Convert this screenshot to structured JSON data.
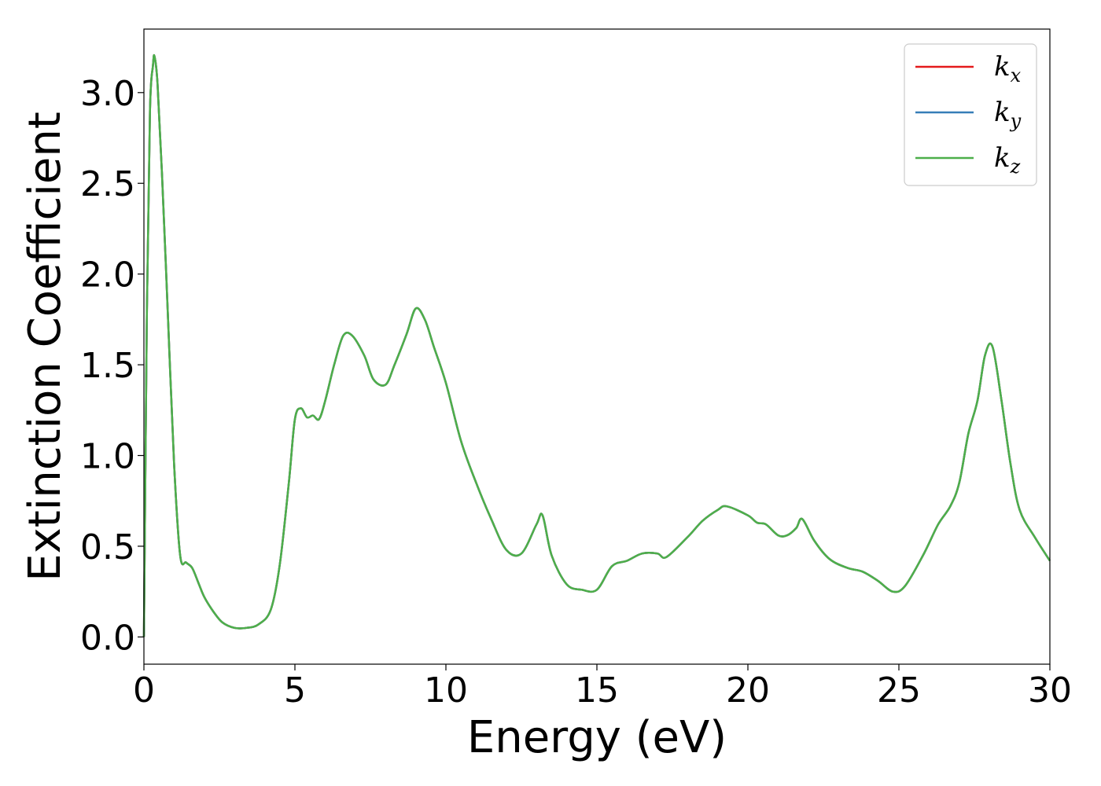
{
  "chart_data": {
    "type": "line",
    "title": "",
    "xlabel": "Energy (eV)",
    "ylabel": "Extinction Coefficient",
    "xlim": [
      0,
      30
    ],
    "ylim": [
      -0.15,
      3.35
    ],
    "xticks": [
      0,
      5,
      10,
      15,
      20,
      25,
      30
    ],
    "xtick_labels": [
      "0",
      "5",
      "10",
      "15",
      "20",
      "25",
      "30"
    ],
    "yticks": [
      0.0,
      0.5,
      1.0,
      1.5,
      2.0,
      2.5,
      3.0
    ],
    "ytick_labels": [
      "0.0",
      "0.5",
      "1.0",
      "1.5",
      "2.0",
      "2.5",
      "3.0"
    ],
    "grid": false,
    "legend_position": "top-right",
    "x": [
      0.0,
      0.1,
      0.2,
      0.3,
      0.35,
      0.45,
      0.6,
      0.8,
      1.0,
      1.2,
      1.4,
      1.6,
      1.8,
      2.0,
      2.3,
      2.6,
      3.0,
      3.4,
      3.8,
      4.2,
      4.5,
      4.8,
      5.0,
      5.2,
      5.4,
      5.6,
      5.8,
      6.0,
      6.3,
      6.6,
      6.9,
      7.3,
      7.6,
      8.0,
      8.3,
      8.7,
      9.0,
      9.3,
      9.6,
      10.0,
      10.5,
      11.0,
      11.5,
      12.0,
      12.5,
      13.0,
      13.2,
      13.5,
      14.0,
      14.5,
      15.0,
      15.5,
      16.0,
      16.5,
      17.0,
      17.3,
      18.0,
      18.5,
      19.0,
      19.3,
      20.0,
      20.3,
      20.6,
      21.0,
      21.3,
      21.6,
      21.8,
      22.2,
      22.7,
      23.3,
      23.8,
      24.3,
      24.8,
      25.2,
      25.8,
      26.3,
      26.7,
      27.0,
      27.3,
      27.6,
      27.85,
      28.1,
      28.4,
      28.7,
      29.0,
      29.5,
      30.0
    ],
    "series": [
      {
        "name": "kx",
        "color": "#e41a1c",
        "values": [
          0.0,
          1.8,
          2.9,
          3.15,
          3.2,
          3.05,
          2.55,
          1.75,
          0.95,
          0.45,
          0.41,
          0.38,
          0.3,
          0.22,
          0.14,
          0.08,
          0.05,
          0.05,
          0.07,
          0.15,
          0.4,
          0.85,
          1.2,
          1.26,
          1.21,
          1.22,
          1.2,
          1.3,
          1.5,
          1.66,
          1.66,
          1.55,
          1.42,
          1.39,
          1.5,
          1.67,
          1.81,
          1.75,
          1.6,
          1.4,
          1.08,
          0.85,
          0.65,
          0.48,
          0.46,
          0.62,
          0.67,
          0.45,
          0.29,
          0.26,
          0.26,
          0.39,
          0.42,
          0.46,
          0.46,
          0.44,
          0.55,
          0.64,
          0.7,
          0.72,
          0.67,
          0.63,
          0.62,
          0.56,
          0.56,
          0.6,
          0.65,
          0.53,
          0.43,
          0.38,
          0.36,
          0.31,
          0.25,
          0.28,
          0.45,
          0.62,
          0.72,
          0.85,
          1.12,
          1.3,
          1.55,
          1.6,
          1.3,
          0.95,
          0.7,
          0.55,
          0.42
        ]
      },
      {
        "name": "ky",
        "color": "#377eb8",
        "values": [
          0.0,
          1.8,
          2.9,
          3.15,
          3.2,
          3.05,
          2.55,
          1.75,
          0.95,
          0.45,
          0.41,
          0.38,
          0.3,
          0.22,
          0.14,
          0.08,
          0.05,
          0.05,
          0.07,
          0.15,
          0.4,
          0.85,
          1.2,
          1.26,
          1.21,
          1.22,
          1.2,
          1.3,
          1.5,
          1.66,
          1.66,
          1.55,
          1.42,
          1.39,
          1.5,
          1.67,
          1.81,
          1.75,
          1.6,
          1.4,
          1.08,
          0.85,
          0.65,
          0.48,
          0.46,
          0.62,
          0.67,
          0.45,
          0.29,
          0.26,
          0.26,
          0.39,
          0.42,
          0.46,
          0.46,
          0.44,
          0.55,
          0.64,
          0.7,
          0.72,
          0.67,
          0.63,
          0.62,
          0.56,
          0.56,
          0.6,
          0.65,
          0.53,
          0.43,
          0.38,
          0.36,
          0.31,
          0.25,
          0.28,
          0.45,
          0.62,
          0.72,
          0.85,
          1.12,
          1.3,
          1.55,
          1.6,
          1.3,
          0.95,
          0.7,
          0.55,
          0.42
        ]
      },
      {
        "name": "kz",
        "color": "#4daf4a",
        "values": [
          0.0,
          1.8,
          2.9,
          3.15,
          3.2,
          3.05,
          2.55,
          1.75,
          0.95,
          0.45,
          0.41,
          0.38,
          0.3,
          0.22,
          0.14,
          0.08,
          0.05,
          0.05,
          0.07,
          0.15,
          0.4,
          0.85,
          1.2,
          1.26,
          1.21,
          1.22,
          1.2,
          1.3,
          1.5,
          1.66,
          1.66,
          1.55,
          1.42,
          1.39,
          1.5,
          1.67,
          1.81,
          1.75,
          1.6,
          1.4,
          1.08,
          0.85,
          0.65,
          0.48,
          0.46,
          0.62,
          0.67,
          0.45,
          0.29,
          0.26,
          0.26,
          0.39,
          0.42,
          0.46,
          0.46,
          0.44,
          0.55,
          0.64,
          0.7,
          0.72,
          0.67,
          0.63,
          0.62,
          0.56,
          0.56,
          0.6,
          0.65,
          0.53,
          0.43,
          0.38,
          0.36,
          0.31,
          0.25,
          0.28,
          0.45,
          0.62,
          0.72,
          0.85,
          1.12,
          1.3,
          1.55,
          1.6,
          1.3,
          0.95,
          0.7,
          0.55,
          0.42
        ]
      }
    ],
    "legend": [
      {
        "base": "k",
        "sub": "x",
        "color": "#e41a1c"
      },
      {
        "base": "k",
        "sub": "y",
        "color": "#377eb8"
      },
      {
        "base": "k",
        "sub": "z",
        "color": "#4daf4a"
      }
    ]
  }
}
